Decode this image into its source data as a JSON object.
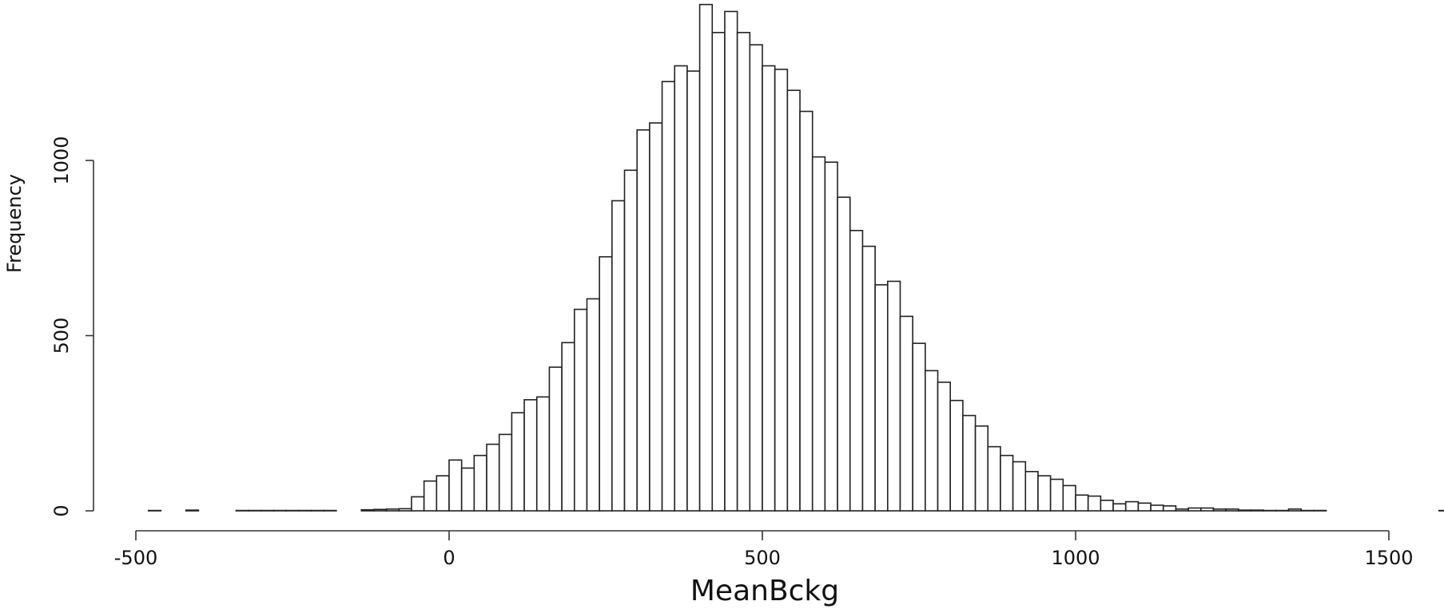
{
  "chart_data": {
    "type": "bar",
    "subtype": "histogram",
    "title": "",
    "xlabel": "MeanBckg",
    "ylabel": "Frequency",
    "xlim": [
      -500,
      1600
    ],
    "ylim": [
      0,
      1450
    ],
    "x_ticks": [
      -500,
      0,
      500,
      1000,
      1500
    ],
    "x_tick_labels": [
      "-500",
      "0",
      "500",
      "1000",
      "1500"
    ],
    "y_ticks": [
      0,
      500,
      1000
    ],
    "y_tick_labels": [
      "0",
      "500",
      "1000"
    ],
    "grid": false,
    "legend": "none",
    "bin_width": 20,
    "bins_start": [
      -480,
      -460,
      -440,
      -420,
      -400,
      -380,
      -360,
      -340,
      -320,
      -300,
      -280,
      -260,
      -240,
      -220,
      -200,
      -180,
      -160,
      -140,
      -120,
      -100,
      -80,
      -60,
      -40,
      -20,
      0,
      20,
      40,
      60,
      80,
      100,
      120,
      140,
      160,
      180,
      200,
      220,
      240,
      260,
      280,
      300,
      320,
      340,
      360,
      380,
      400,
      420,
      440,
      460,
      480,
      500,
      520,
      540,
      560,
      580,
      600,
      620,
      640,
      660,
      680,
      700,
      720,
      740,
      760,
      780,
      800,
      820,
      840,
      860,
      880,
      900,
      920,
      940,
      960,
      980,
      1000,
      1020,
      1040,
      1060,
      1080,
      1100,
      1120,
      1140,
      1160,
      1180,
      1200,
      1220,
      1240,
      1260,
      1280,
      1300,
      1320,
      1340,
      1360,
      1380,
      1400,
      1420,
      1440,
      1460,
      1480,
      1500,
      1520,
      1540,
      1560,
      1580
    ],
    "values": [
      1,
      0,
      0,
      2,
      0,
      0,
      0,
      1,
      1,
      1,
      1,
      1,
      1,
      1,
      1,
      0,
      0,
      3,
      4,
      5,
      6,
      40,
      85,
      100,
      145,
      122,
      158,
      190,
      218,
      280,
      317,
      325,
      410,
      480,
      575,
      605,
      725,
      885,
      972,
      1087,
      1107,
      1225,
      1270,
      1255,
      1445,
      1365,
      1425,
      1365,
      1330,
      1270,
      1260,
      1200,
      1140,
      1010,
      995,
      895,
      800,
      755,
      645,
      655,
      555,
      478,
      400,
      367,
      315,
      272,
      242,
      183,
      158,
      140,
      112,
      100,
      90,
      72,
      45,
      42,
      30,
      20,
      26,
      22,
      16,
      14,
      5,
      8,
      8,
      5,
      5,
      2,
      2,
      1,
      1,
      5,
      1,
      1,
      0,
      0,
      0,
      0,
      0,
      0,
      0,
      0,
      0,
      1
    ]
  }
}
